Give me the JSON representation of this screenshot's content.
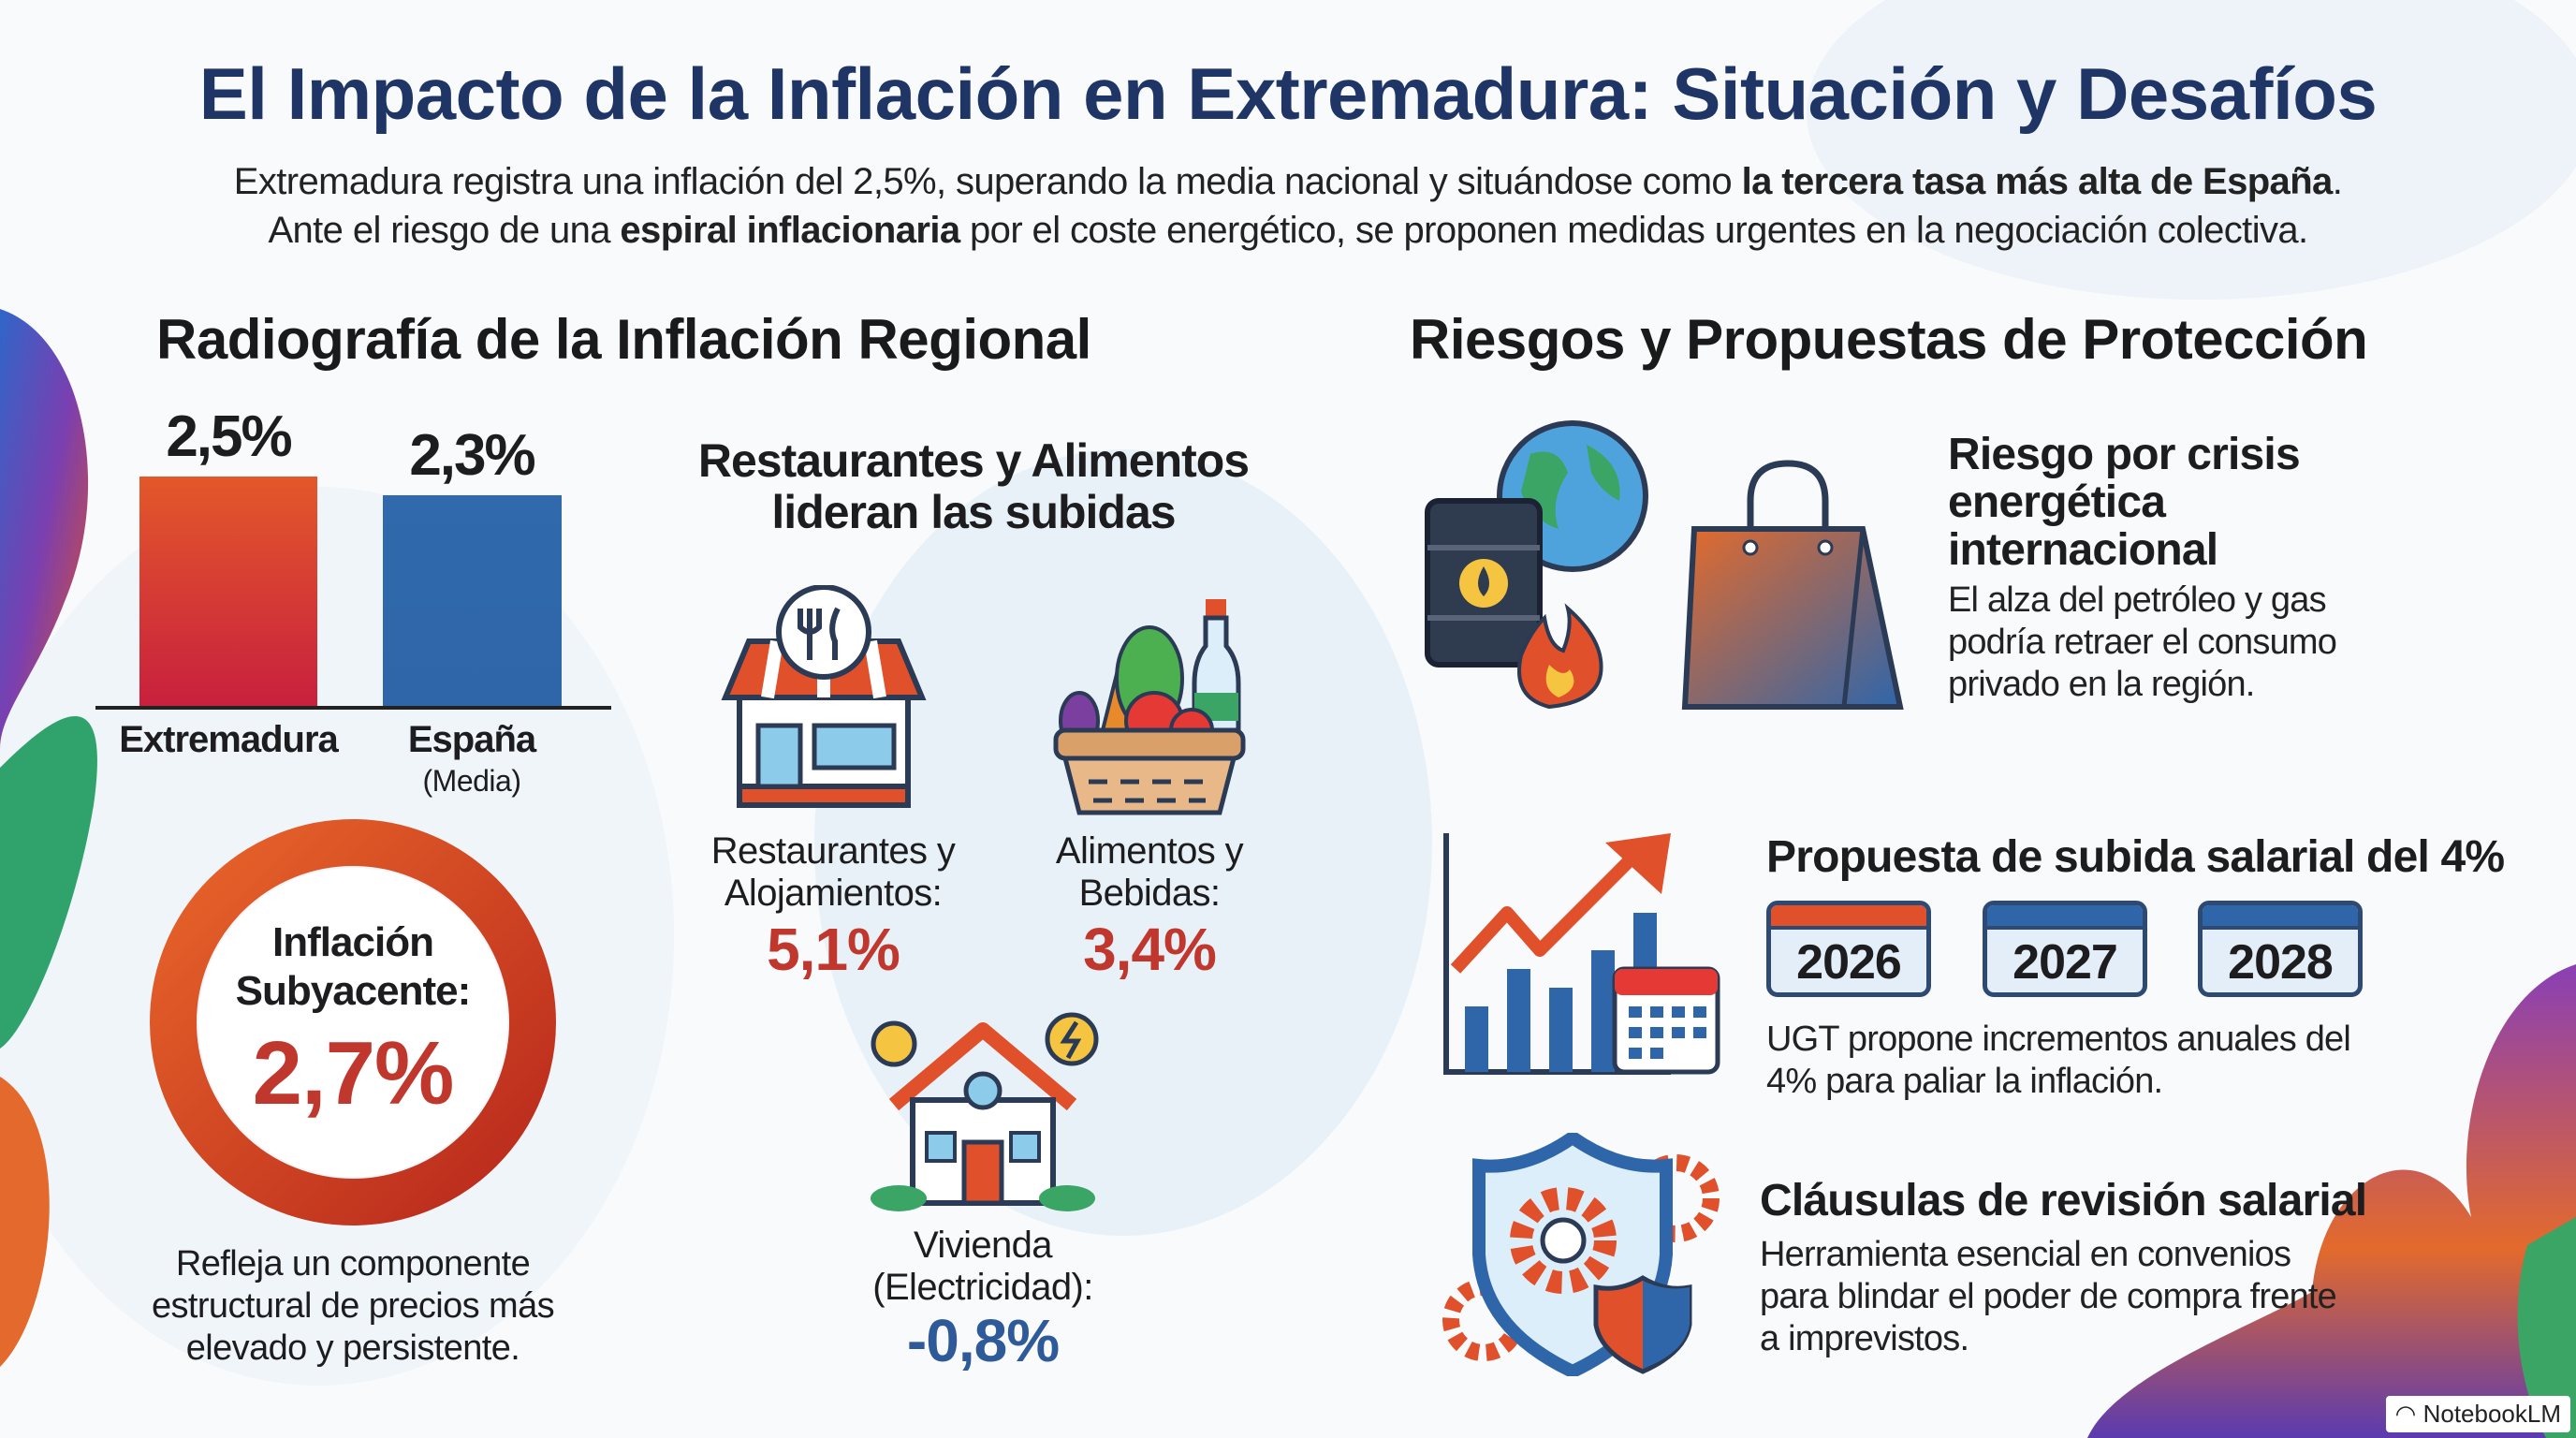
{
  "title": "El Impacto de la Inflación en Extremadura: Situación y Desafíos",
  "intro": {
    "line1_a": "Extremadura registra una inflación del 2,5%, superando la media nacional y situándose como ",
    "line1_b": "la tercera tasa más alta de España",
    "line1_c": ".",
    "line2_a": "Ante el riesgo de una ",
    "line2_b": "espiral inflacionaria",
    "line2_c": " por el coste energético, se proponen medidas urgentes en la negociación colectiva."
  },
  "left": {
    "heading": "Radiografía de la Inflación Regional",
    "espana_note": "(Media)",
    "core": {
      "label1": "Inflación",
      "label2": "Subyacente:",
      "value": "2,7%"
    },
    "core_caption": [
      "Refleja un componente",
      "estructural de precios más",
      "elevado y persistente."
    ]
  },
  "chart_data": {
    "type": "bar",
    "categories": [
      "Extremadura",
      "España"
    ],
    "values": [
      2.5,
      2.3
    ],
    "value_labels": [
      "2,5%",
      "2,3%"
    ],
    "ylim": [
      0,
      2.5
    ],
    "colors": [
      "#e0502a",
      "#2f66aa"
    ]
  },
  "sectors": {
    "heading": [
      "Restaurantes y Alimentos",
      "lideran las subidas"
    ],
    "items": [
      {
        "label": [
          "Restaurantes y",
          "Alojamientos:"
        ],
        "value": "5,1%",
        "icon": "restaurant-icon"
      },
      {
        "label": [
          "Alimentos y",
          "Bebidas:"
        ],
        "value": "3,4%",
        "icon": "food-basket-icon"
      },
      {
        "label": [
          "Vivienda",
          "(Electricidad):"
        ],
        "value": "-0,8%",
        "icon": "house-energy-icon"
      }
    ]
  },
  "right": {
    "heading": "Riesgos y Propuestas de Protección",
    "risk": {
      "title": [
        "Riesgo por crisis",
        "energética",
        "internacional"
      ],
      "body": [
        "El alza del petróleo y gas",
        "podría retraer el consumo",
        "privado en la región."
      ]
    },
    "proposal": {
      "title": "Propuesta de subida salarial del 4%",
      "years": [
        "2026",
        "2027",
        "2028"
      ],
      "body": [
        "UGT propone incrementos anuales del",
        "4% para paliar la inflación."
      ]
    },
    "clauses": {
      "title": "Cláusulas de revisión salarial",
      "body": [
        "Herramienta esencial en convenios",
        "para blindar el poder de compra frente",
        "a imprevistos."
      ]
    }
  },
  "badge": "NotebookLM",
  "colors": {
    "title": "#1f3566",
    "red": "#c0372e",
    "blue": "#2e5a99",
    "orange": "#e0502a"
  }
}
